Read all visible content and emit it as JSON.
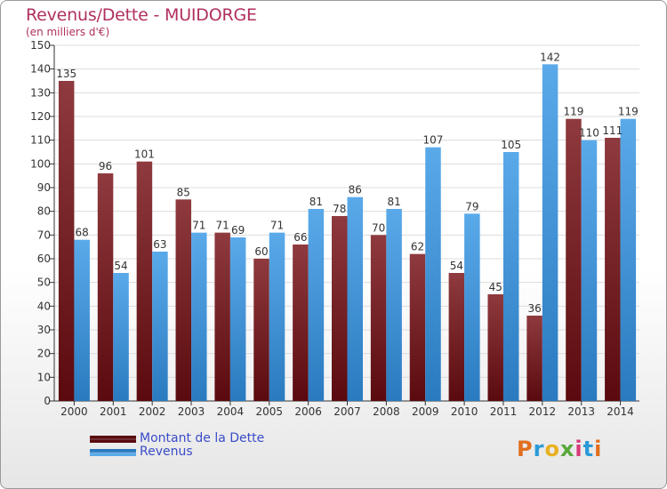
{
  "header": {
    "title": "Revenus/Dette - MUIDORGE",
    "subtitle": "(en milliers d'€)"
  },
  "legend": {
    "debt_label": "Montant de la Dette",
    "revenue_label": "Revenus"
  },
  "logo": {
    "text": "Proxiti"
  },
  "colors": {
    "debt_top": "#8e3a3e",
    "debt_bottom": "#5a0a0e",
    "revenue_top": "#5aaaea",
    "revenue_bottom": "#2a7ac0",
    "title": "#b03060",
    "legend_text": "#3a4cc8"
  },
  "chart_data": {
    "type": "bar",
    "title": "Revenus/Dette - MUIDORGE",
    "subtitle": "(en milliers d'€)",
    "categories": [
      "2000",
      "2001",
      "2002",
      "2003",
      "2004",
      "2005",
      "2006",
      "2007",
      "2008",
      "2009",
      "2010",
      "2011",
      "2012",
      "2013",
      "2014"
    ],
    "series": [
      {
        "name": "Montant de la Dette",
        "values": [
          135,
          96,
          101,
          85,
          71,
          60,
          66,
          78,
          70,
          62,
          54,
          45,
          36,
          119,
          111
        ]
      },
      {
        "name": "Revenus",
        "values": [
          68,
          54,
          63,
          71,
          69,
          71,
          81,
          86,
          81,
          107,
          79,
          105,
          142,
          110,
          119
        ]
      }
    ],
    "ylim": [
      0,
      150
    ],
    "yticks": [
      0,
      10,
      20,
      30,
      40,
      50,
      60,
      70,
      80,
      90,
      100,
      110,
      120,
      130,
      140,
      150
    ],
    "grid": true,
    "legend_position": "bottom-left"
  }
}
